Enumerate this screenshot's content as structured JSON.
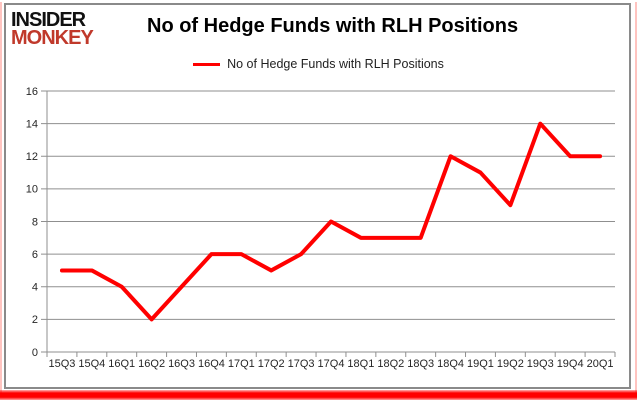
{
  "logo": {
    "line1": "INSIDER",
    "line2": "MONKEY"
  },
  "header": {
    "title": "No of Hedge Funds with RLH Positions"
  },
  "legend": {
    "label": "No of Hedge Funds with RLH Positions"
  },
  "colors": {
    "series_red": "#ff0000",
    "logo_red": "#c0392b",
    "grid_gray": "#8f8f8f",
    "frame_gray": "#8a8a8a",
    "text": "#262626"
  },
  "chart_data": {
    "type": "line",
    "title": "No of Hedge Funds with RLH Positions",
    "xlabel": "",
    "ylabel": "",
    "categories": [
      "15Q3",
      "15Q4",
      "16Q1",
      "16Q2",
      "16Q3",
      "16Q4",
      "17Q1",
      "17Q2",
      "17Q3",
      "17Q4",
      "18Q1",
      "18Q2",
      "18Q3",
      "18Q4",
      "19Q1",
      "19Q2",
      "19Q3",
      "19Q4",
      "20Q1"
    ],
    "series": [
      {
        "name": "No of Hedge Funds with RLH Positions",
        "color": "#ff0000",
        "values": [
          5,
          5,
          4,
          2,
          4,
          6,
          6,
          5,
          6,
          8,
          7,
          7,
          7,
          12,
          11,
          9,
          14,
          12,
          12
        ]
      }
    ],
    "ylim": [
      0,
      16
    ],
    "ytick_step": 2,
    "grid": "horizontal",
    "legend_position": "top-center"
  }
}
